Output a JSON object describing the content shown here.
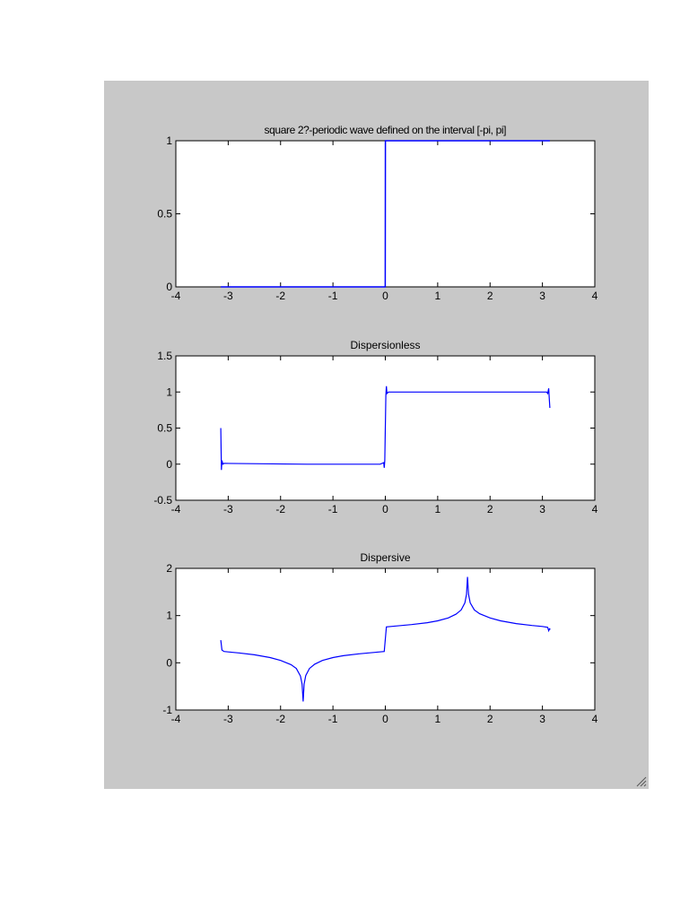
{
  "window": {
    "background": "#c8c8c8",
    "axes_background": "#ffffff",
    "line_color": "#0000ff"
  },
  "icons": {
    "resize": "resize-grip-icon"
  },
  "chart_data": [
    {
      "type": "line",
      "title": "square 2?-periodic wave defined on the interval [-pi, pi]",
      "xlabel": "",
      "ylabel": "",
      "xlim": [
        -4,
        4
      ],
      "ylim": [
        0,
        1
      ],
      "xticks": [
        -4,
        -3,
        -2,
        -1,
        0,
        1,
        2,
        3,
        4
      ],
      "xtick_labels": [
        "-4",
        "-3",
        "-2",
        "-1",
        "0",
        "1",
        "2",
        "3",
        "4"
      ],
      "yticks": [
        0,
        0.5,
        1
      ],
      "ytick_labels": [
        "0",
        "0.5",
        "1"
      ],
      "grid": false,
      "series": [
        {
          "x": [
            -3.1416,
            -0.001,
            0,
            0.001,
            3.1416
          ],
          "y": [
            0,
            0,
            0.5,
            1,
            1
          ]
        }
      ]
    },
    {
      "type": "line",
      "title": "Dispersionless",
      "xlabel": "",
      "ylabel": "",
      "xlim": [
        -4,
        4
      ],
      "ylim": [
        -0.5,
        1.5
      ],
      "xticks": [
        -4,
        -3,
        -2,
        -1,
        0,
        1,
        2,
        3,
        4
      ],
      "xtick_labels": [
        "-4",
        "-3",
        "-2",
        "-1",
        "0",
        "1",
        "2",
        "3",
        "4"
      ],
      "yticks": [
        -0.5,
        0,
        0.5,
        1,
        1.5
      ],
      "ytick_labels": [
        "-0.5",
        "0",
        "0.5",
        "1",
        "1.5"
      ],
      "grid": false,
      "series": [
        {
          "x": [
            -3.1416,
            -3.13,
            -3.12,
            -3.1,
            -3.08,
            -1.5,
            -0.1,
            -0.03,
            -0.02,
            -0.01,
            0,
            0.01,
            0.02,
            0.03,
            0.06,
            1.5,
            3.08,
            3.1,
            3.12,
            3.13,
            3.1416
          ],
          "y": [
            0.5,
            -0.08,
            0.05,
            0.0,
            0.01,
            0.0,
            0.0,
            0.02,
            -0.05,
            0.05,
            0.5,
            0.95,
            1.08,
            0.98,
            1.0,
            1.0,
            1.0,
            0.98,
            1.05,
            0.92,
            0.78
          ]
        }
      ]
    },
    {
      "type": "line",
      "title": "Dispersive",
      "xlabel": "",
      "ylabel": "",
      "xlim": [
        -4,
        4
      ],
      "ylim": [
        -1,
        2
      ],
      "xticks": [
        -4,
        -3,
        -2,
        -1,
        0,
        1,
        2,
        3,
        4
      ],
      "xtick_labels": [
        "-4",
        "-3",
        "-2",
        "-1",
        "0",
        "1",
        "2",
        "3",
        "4"
      ],
      "yticks": [
        -1,
        0,
        1,
        2
      ],
      "ytick_labels": [
        "-1",
        "0",
        "1",
        "2"
      ],
      "grid": false,
      "series": [
        {
          "x": [
            -3.1416,
            -3.12,
            -3.08,
            -3.0,
            -2.8,
            -2.5,
            -2.2,
            -2.0,
            -1.8,
            -1.7,
            -1.62,
            -1.59,
            -1.57,
            -1.55,
            -1.52,
            -1.45,
            -1.35,
            -1.2,
            -1.0,
            -0.8,
            -0.5,
            -0.2,
            -0.02,
            0,
            0.02,
            0.2,
            0.5,
            0.8,
            1.0,
            1.2,
            1.35,
            1.45,
            1.52,
            1.55,
            1.57,
            1.59,
            1.62,
            1.7,
            1.8,
            2.0,
            2.2,
            2.5,
            2.8,
            3.0,
            3.1,
            3.12,
            3.14,
            3.1416
          ],
          "y": [
            0.48,
            0.27,
            0.24,
            0.23,
            0.21,
            0.17,
            0.11,
            0.05,
            -0.04,
            -0.12,
            -0.28,
            -0.45,
            -0.82,
            -0.45,
            -0.27,
            -0.12,
            -0.03,
            0.05,
            0.11,
            0.15,
            0.19,
            0.22,
            0.24,
            0.5,
            0.76,
            0.78,
            0.81,
            0.85,
            0.89,
            0.95,
            1.03,
            1.12,
            1.27,
            1.45,
            1.82,
            1.45,
            1.27,
            1.12,
            1.04,
            0.95,
            0.89,
            0.83,
            0.79,
            0.77,
            0.75,
            0.68,
            0.73,
            0.7
          ]
        }
      ]
    }
  ]
}
